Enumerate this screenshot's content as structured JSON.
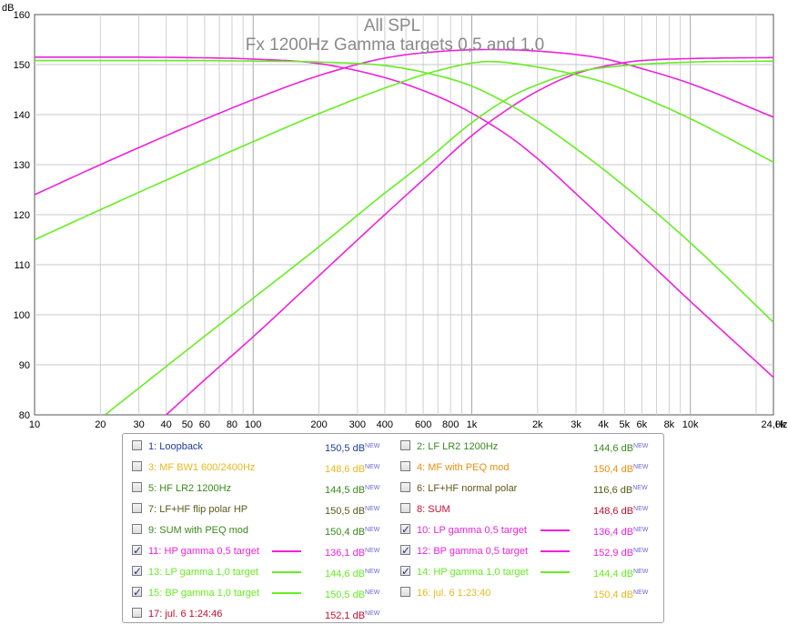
{
  "chart_data": {
    "type": "line",
    "title": "All SPL",
    "subtitle": "Fx 1200Hz Gamma targets 0,5 and 1,0",
    "ylabel": "dB",
    "xlabel": "Hz",
    "xscale": "log",
    "xlim": [
      10,
      24000
    ],
    "ylim": [
      80,
      160
    ],
    "grid": true,
    "y_ticks": [
      "80",
      "90",
      "100",
      "110",
      "120",
      "130",
      "140",
      "150",
      "160"
    ],
    "x_ticks": [
      {
        "v": 10,
        "label": "10"
      },
      {
        "v": 20,
        "label": "20"
      },
      {
        "v": 30,
        "label": "30"
      },
      {
        "v": 40,
        "label": "40"
      },
      {
        "v": 50,
        "label": "50"
      },
      {
        "v": 60,
        "label": "60"
      },
      {
        "v": 80,
        "label": "80"
      },
      {
        "v": 100,
        "label": "100"
      },
      {
        "v": 200,
        "label": "200"
      },
      {
        "v": 300,
        "label": "300"
      },
      {
        "v": 400,
        "label": "400"
      },
      {
        "v": 600,
        "label": "600"
      },
      {
        "v": 800,
        "label": "800"
      },
      {
        "v": 1000,
        "label": "1k"
      },
      {
        "v": 2000,
        "label": "2k"
      },
      {
        "v": 3000,
        "label": "3k"
      },
      {
        "v": 4000,
        "label": "4k"
      },
      {
        "v": 5000,
        "label": "5k"
      },
      {
        "v": 6000,
        "label": "6k"
      },
      {
        "v": 8000,
        "label": "8k"
      },
      {
        "v": 10000,
        "label": "10k"
      },
      {
        "v": 24000,
        "label": "24,0k"
      }
    ],
    "series": [
      {
        "name": "10: LP gamma 0,5 target",
        "color": "#ee22dd",
        "x": [
          10,
          20,
          50,
          100,
          200,
          400,
          600,
          800,
          1000,
          1500,
          2000,
          3000,
          5000,
          10000,
          24000
        ],
        "y": [
          151.5,
          151.5,
          151.4,
          151.1,
          150.2,
          147.4,
          144.8,
          142.5,
          140.3,
          135.5,
          131.2,
          124.2,
          115.1,
          102.7,
          87.5
        ]
      },
      {
        "name": "11: HP gamma 0,5 target",
        "color": "#ee22dd",
        "x": [
          40,
          60,
          100,
          200,
          400,
          600,
          1000,
          1500,
          2000,
          3000,
          5000,
          6000,
          10000,
          24000
        ],
        "y": [
          80,
          87,
          95.6,
          107.8,
          120,
          127,
          135.8,
          141.4,
          144.7,
          148.2,
          150.4,
          150.8,
          151.2,
          151.4
        ]
      },
      {
        "name": "12: BP gamma 0,5 target",
        "color": "#ee22dd",
        "x": [
          10,
          20,
          50,
          100,
          200,
          400,
          700,
          1200,
          2000,
          4000,
          6000,
          10000,
          24000
        ],
        "y": [
          124,
          130,
          137.6,
          143,
          147.8,
          151.3,
          152.6,
          153,
          152.7,
          151.2,
          149.2,
          146.2,
          139.5
        ]
      },
      {
        "name": "13: LP gamma 1,0 target",
        "color": "#66ee22",
        "x": [
          10,
          50,
          100,
          200,
          400,
          700,
          1000,
          1500,
          2000,
          3000,
          5000,
          10000,
          24000
        ],
        "y": [
          150.8,
          150.8,
          150.7,
          150.5,
          149.8,
          147.8,
          145.7,
          141.9,
          138.6,
          133.2,
          125.7,
          114.4,
          98.5
        ]
      },
      {
        "name": "14: HP gamma 1,0 target",
        "color": "#66ee22",
        "x": [
          21,
          50,
          100,
          200,
          400,
          600,
          1000,
          1500,
          2000,
          3000,
          5000,
          10000,
          24000
        ],
        "y": [
          80,
          93,
          103.3,
          113.6,
          124.3,
          130.3,
          138.4,
          143.5,
          146,
          148.5,
          149.8,
          150.5,
          150.7
        ]
      },
      {
        "name": "15: BP gamma 1,0 target",
        "color": "#66ee22",
        "x": [
          10,
          20,
          50,
          100,
          200,
          400,
          700,
          1200,
          2000,
          4000,
          6000,
          10000,
          24000
        ],
        "y": [
          115,
          121,
          128.8,
          134.6,
          140.2,
          145.3,
          148.8,
          150.6,
          149.5,
          146.5,
          143.5,
          139.2,
          130.5
        ]
      }
    ]
  },
  "legend": {
    "entries": [
      {
        "id": "e1",
        "label": "1: Loopback",
        "value": "150,5 dB",
        "badge": "NEW",
        "checked": false,
        "color": "#1f3c9c",
        "swatch": null
      },
      {
        "id": "e2",
        "label": "2: LF LR2 1200Hz",
        "value": "144,6 dB",
        "badge": "NEW",
        "checked": false,
        "color": "#3a8a1a",
        "swatch": null
      },
      {
        "id": "e3",
        "label": "3: MF BW1 600/2400Hz",
        "value": "148,6 dB",
        "badge": "NEW",
        "checked": false,
        "color": "#e8b820",
        "swatch": null
      },
      {
        "id": "e4",
        "label": "4: MF with PEQ mod",
        "value": "150,4 dB",
        "badge": "NEW",
        "checked": false,
        "color": "#e89010",
        "swatch": null
      },
      {
        "id": "e5",
        "label": "5: HF LR2 1200Hz",
        "value": "144,5 dB",
        "badge": "NEW",
        "checked": false,
        "color": "#3a8a1a",
        "swatch": null
      },
      {
        "id": "e6",
        "label": "6: LF+HF normal polar",
        "value": "116,6 dB",
        "badge": "NEW",
        "checked": false,
        "color": "#5a5a1a",
        "swatch": null
      },
      {
        "id": "e7",
        "label": "7: LF+HF flip polar HP",
        "value": "150,5 dB",
        "badge": "NEW",
        "checked": false,
        "color": "#5a5a1a",
        "swatch": null
      },
      {
        "id": "e8",
        "label": "8: SUM",
        "value": "148,6 dB",
        "badge": "NEW",
        "checked": false,
        "color": "#c01030",
        "swatch": null
      },
      {
        "id": "e9",
        "label": "9: SUM with PEQ mod",
        "value": "150,4 dB",
        "badge": "NEW",
        "checked": false,
        "color": "#3a8a1a",
        "swatch": null
      },
      {
        "id": "e10",
        "label": "10: LP gamma 0,5 target",
        "value": "136,4 dB",
        "badge": "NEW",
        "checked": true,
        "color": "#ee22dd",
        "swatch": "#ee22dd"
      },
      {
        "id": "e11",
        "label": "11: HP gamma 0,5 target",
        "value": "136,1 dB",
        "badge": "NEW",
        "checked": true,
        "color": "#ee22dd",
        "swatch": "#ee22dd"
      },
      {
        "id": "e12",
        "label": "12: BP gamma 0,5 target",
        "value": "152,9 dB",
        "badge": "NEW",
        "checked": true,
        "color": "#ee22dd",
        "swatch": "#ee22dd"
      },
      {
        "id": "e13",
        "label": "13: LP gamma 1,0 target",
        "value": "144,6 dB",
        "badge": "NEW",
        "checked": true,
        "color": "#66ee22",
        "swatch": "#66ee22"
      },
      {
        "id": "e14",
        "label": "14: HP gamma 1,0 target",
        "value": "144,4 dB",
        "badge": "NEW",
        "checked": true,
        "color": "#66ee22",
        "swatch": "#66ee22"
      },
      {
        "id": "e15",
        "label": "15: BP gamma 1,0 target",
        "value": "150,5 dB",
        "badge": "NEW",
        "checked": true,
        "color": "#66ee22",
        "swatch": "#66ee22"
      },
      {
        "id": "e16",
        "label": "16: jul. 6 1:23:40",
        "value": "150,4 dB",
        "badge": "NEW",
        "checked": false,
        "color": "#e8b820",
        "swatch": null
      },
      {
        "id": "e17",
        "label": "17: jul. 6 1:24:46",
        "value": "152,1 dB",
        "badge": "NEW",
        "checked": false,
        "color": "#c01030",
        "swatch": null
      }
    ]
  }
}
